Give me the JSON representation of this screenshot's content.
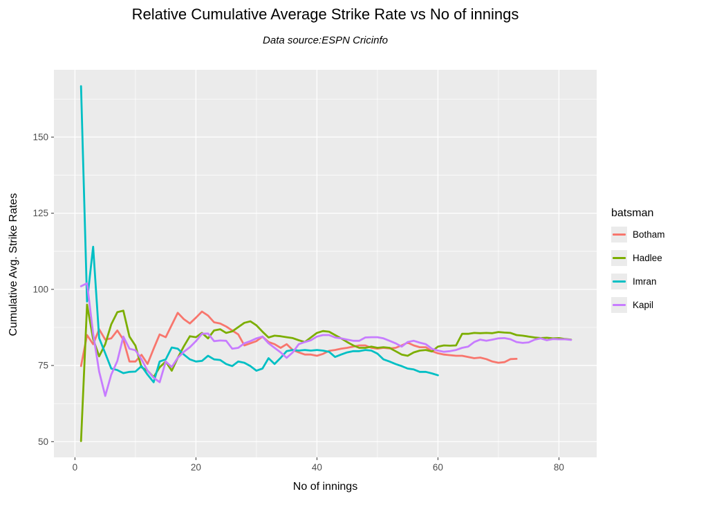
{
  "chart_data": {
    "type": "line",
    "title": "Relative Cumulative Average Strike Rate vs No of innings",
    "subtitle": "Data source:ESPN Cricinfo",
    "xlabel": "No of innings",
    "ylabel": "Cumulative Avg. Strike Rates",
    "legend_title": "batsman",
    "legend_position": "right",
    "grid": "on",
    "panel_color": "#EBEBEB",
    "gridline_color": "#FFFFFF",
    "tick_label_color": "#4D4D4D",
    "x_ticks": [
      0,
      20,
      40,
      60,
      80
    ],
    "y_ticks": [
      50,
      75,
      100,
      125,
      150
    ],
    "xlim": [
      -3.4,
      86.2
    ],
    "ylim": [
      44.9,
      172.1
    ],
    "x_start": 1,
    "series": [
      {
        "name": "Botham",
        "color": "#F8766D",
        "values": [
          74.8,
          85.0,
          82.0,
          86.9,
          83.5,
          83.9,
          86.5,
          83.5,
          76.3,
          76.3,
          78.5,
          75.5,
          80.5,
          85.2,
          84.3,
          88.3,
          92.3,
          90.2,
          88.8,
          90.7,
          92.7,
          91.4,
          89.2,
          88.8,
          87.8,
          86.5,
          85.2,
          81.6,
          82.3,
          83.0,
          84.5,
          82.7,
          82.0,
          80.8,
          82.0,
          80.1,
          79.3,
          78.6,
          78.6,
          78.2,
          78.8,
          79.8,
          80.1,
          80.5,
          80.8,
          81.2,
          81.6,
          81.6,
          80.8,
          80.5,
          80.8,
          80.6,
          80.8,
          81.6,
          82.5,
          81.6,
          81.0,
          81.0,
          79.7,
          79.0,
          78.6,
          78.4,
          78.2,
          78.2,
          77.8,
          77.4,
          77.6,
          77.1,
          76.3,
          75.9,
          76.1,
          77.1,
          77.2
        ]
      },
      {
        "name": "Hadlee",
        "color": "#7CAE00",
        "values": [
          50.2,
          95.0,
          83.7,
          78.0,
          82.0,
          88.5,
          92.5,
          93.0,
          84.5,
          81.5,
          74.4,
          73.3,
          71.2,
          74.4,
          76.3,
          73.3,
          77.5,
          81.3,
          84.6,
          84.3,
          85.7,
          83.9,
          86.5,
          86.9,
          85.7,
          86.2,
          87.6,
          89.0,
          89.5,
          88.2,
          86.1,
          84.2,
          84.8,
          84.6,
          84.3,
          84.0,
          83.3,
          82.7,
          84.2,
          85.7,
          86.3,
          86.1,
          85.0,
          83.9,
          82.7,
          81.6,
          80.8,
          80.8,
          81.2,
          80.8,
          81.0,
          80.8,
          79.7,
          78.6,
          78.2,
          79.3,
          79.9,
          80.1,
          79.6,
          81.2,
          81.6,
          81.5,
          81.6,
          85.4,
          85.4,
          85.7,
          85.6,
          85.7,
          85.6,
          86.0,
          85.8,
          85.7,
          85.0,
          84.8,
          84.5,
          84.2,
          84.0,
          84.1,
          83.9,
          84.0,
          83.7,
          83.5
        ]
      },
      {
        "name": "Imran",
        "color": "#00BFC4",
        "values": [
          166.7,
          96.0,
          114.0,
          84.0,
          79.0,
          74.0,
          73.5,
          72.5,
          72.9,
          73.0,
          74.8,
          72.0,
          69.5,
          76.3,
          77.0,
          80.9,
          80.5,
          78.6,
          77.0,
          76.3,
          76.5,
          78.2,
          77.0,
          76.8,
          75.5,
          74.8,
          76.3,
          75.9,
          74.8,
          73.3,
          74.0,
          77.4,
          75.5,
          77.5,
          79.7,
          80.1,
          79.9,
          80.1,
          79.9,
          80.1,
          79.9,
          79.5,
          77.8,
          78.6,
          79.3,
          79.7,
          79.7,
          80.1,
          79.9,
          78.9,
          77.0,
          76.3,
          75.5,
          74.8,
          74.0,
          73.7,
          72.9,
          72.9,
          72.4,
          71.8
        ]
      },
      {
        "name": "Kapil",
        "color": "#C77CFF",
        "values": [
          101.0,
          102.0,
          85.5,
          73.0,
          65.0,
          72.0,
          76.5,
          84.5,
          80.5,
          80.0,
          77.0,
          73.3,
          71.0,
          69.5,
          76.3,
          74.5,
          77.5,
          79.5,
          81.0,
          83.0,
          85.4,
          85.5,
          83.0,
          83.2,
          83.1,
          80.5,
          80.8,
          82.3,
          83.0,
          83.9,
          84.5,
          82.3,
          80.8,
          79.3,
          77.5,
          79.3,
          82.0,
          82.7,
          83.3,
          84.5,
          85.0,
          85.0,
          84.2,
          83.9,
          83.5,
          83.1,
          83.1,
          84.2,
          84.3,
          84.3,
          83.9,
          83.1,
          82.3,
          81.2,
          82.7,
          83.1,
          82.5,
          82.0,
          80.5,
          79.9,
          79.5,
          79.7,
          80.1,
          80.8,
          81.2,
          82.7,
          83.5,
          83.1,
          83.5,
          83.9,
          84.0,
          83.6,
          82.7,
          82.4,
          82.6,
          83.5,
          83.9,
          83.3,
          83.7,
          83.6,
          83.6,
          83.4
        ]
      }
    ]
  }
}
